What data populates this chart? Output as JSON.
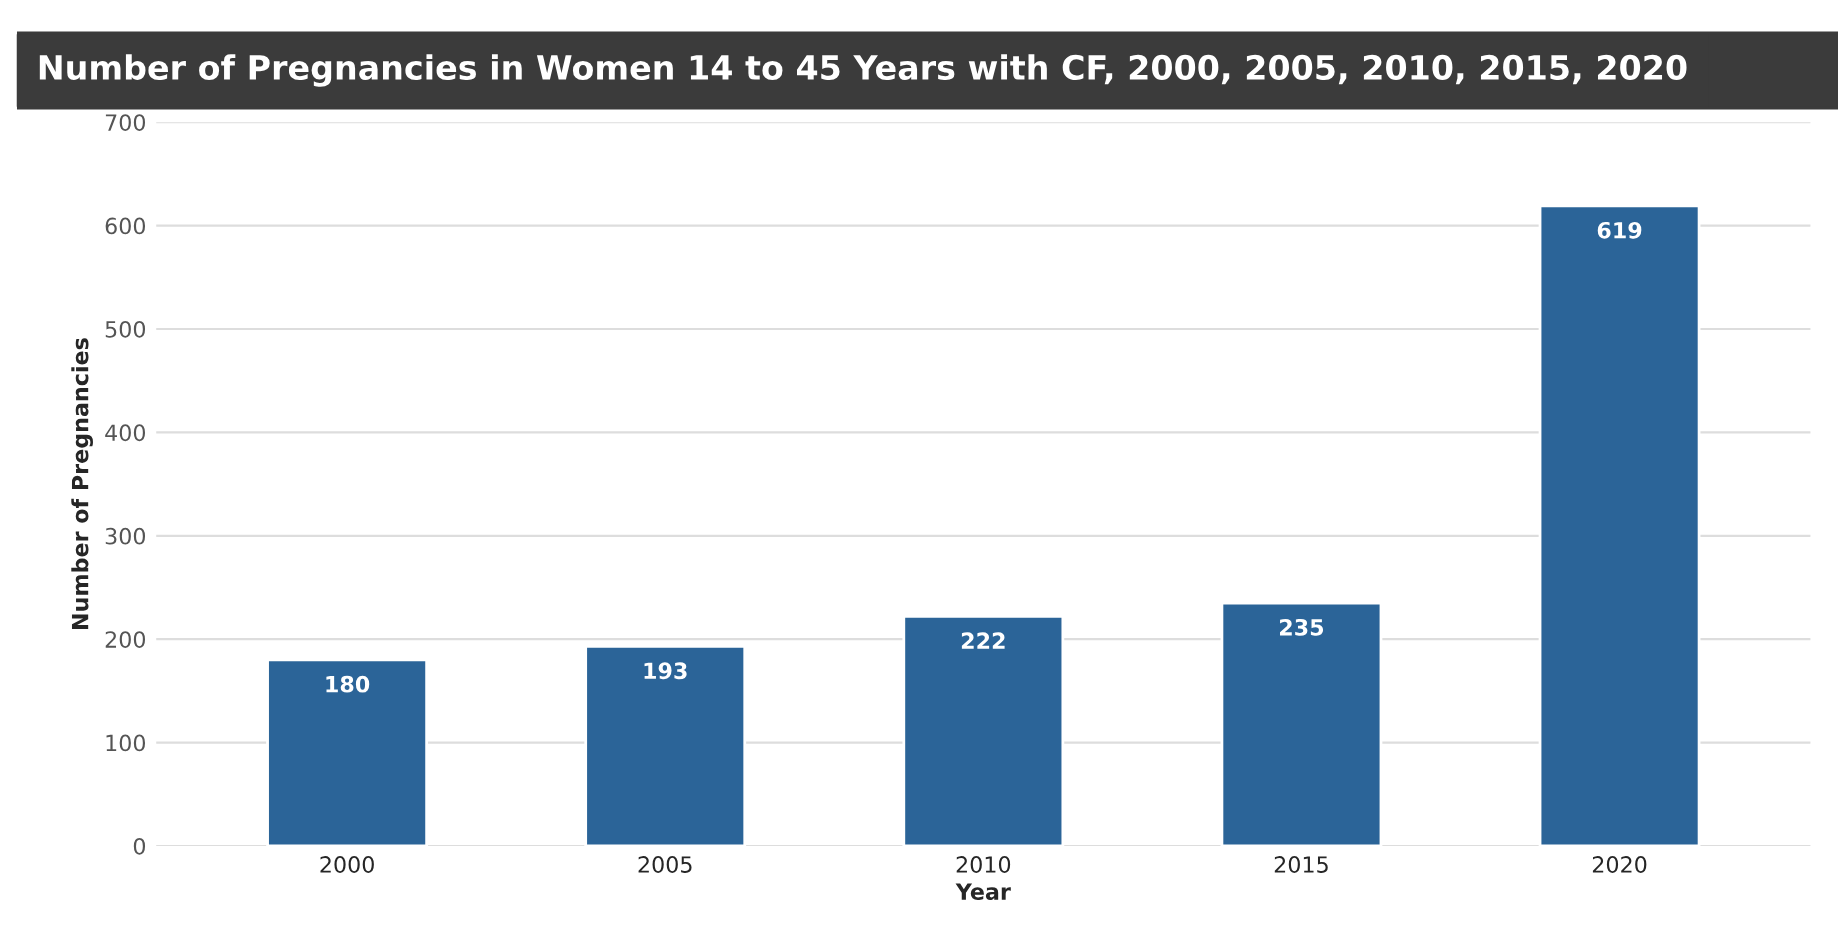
{
  "chart_data": {
    "type": "bar",
    "title": "Number of Pregnancies in Women 14 to 45 Years with CF, 2000, 2005, 2010, 2015, 2020",
    "xlabel": "Year",
    "ylabel": "Number of Pregnancies",
    "categories": [
      "2000",
      "2005",
      "2010",
      "2015",
      "2020"
    ],
    "values": [
      180,
      193,
      222,
      235,
      619
    ],
    "color": "#2b6498",
    "ylim": [
      0,
      700
    ],
    "yticks": [
      0,
      100,
      200,
      300,
      400,
      500,
      600,
      700
    ],
    "grid": "y",
    "data_labels": true
  }
}
